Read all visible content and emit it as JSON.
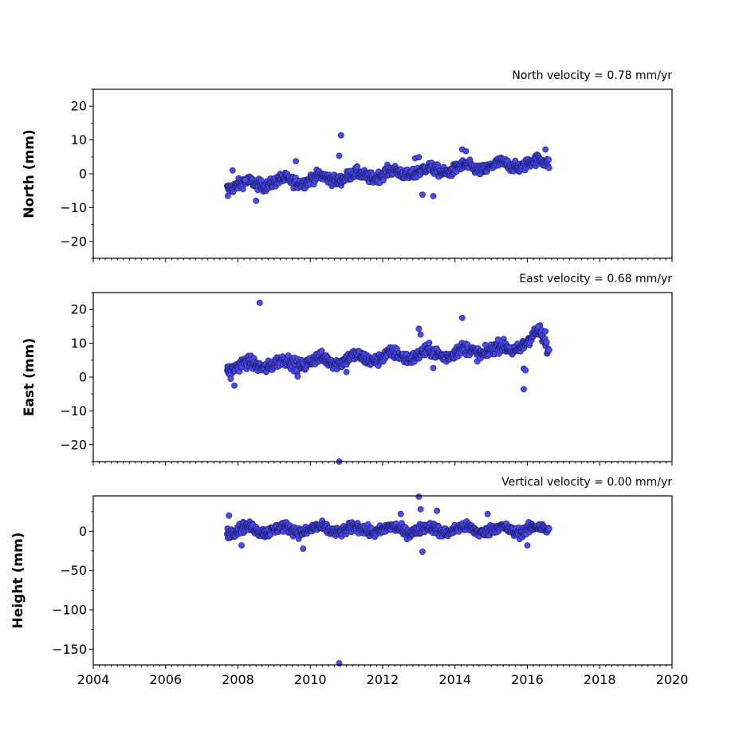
{
  "colors": {
    "marker_fill": "#4b4bf0",
    "marker_edge": "#1a1a66",
    "axes": "#000000"
  },
  "chart_data": [
    {
      "type": "scatter",
      "title": "North velocity = 0.78 mm/yr",
      "ylabel": "North (mm)",
      "xlim": [
        2004,
        2020
      ],
      "ylim": [
        -25,
        25
      ],
      "xticks": [
        "2004",
        "2006",
        "2008",
        "2010",
        "2012",
        "2014",
        "2016",
        "2018",
        "2020"
      ],
      "yticks": [
        "20",
        "10",
        "0",
        "−10",
        "−20"
      ],
      "ytick_values": [
        20,
        10,
        0,
        -10,
        -20
      ],
      "x_range": [
        2007.7,
        2016.6
      ],
      "trend": {
        "slope": 0.78,
        "start": -3.5,
        "noise": 1.6
      },
      "series": [
        {
          "x": [
            2007.72,
            2007.85,
            2008.2,
            2008.5,
            2009.6,
            2010.8,
            2010.85,
            2012.9,
            2013.0,
            2013.1,
            2013.4,
            2014.2,
            2014.3,
            2016.5
          ],
          "values": [
            -6.5,
            1.0,
            -1.8,
            -8.0,
            3.7,
            5.3,
            11.4,
            4.6,
            4.9,
            -6.2,
            -6.6,
            7.2,
            6.7,
            7.2
          ]
        }
      ]
    },
    {
      "type": "scatter",
      "title": "East velocity = 0.68 mm/yr",
      "ylabel": "East (mm)",
      "xlim": [
        2004,
        2020
      ],
      "ylim": [
        -25,
        25
      ],
      "xticks": [
        "2004",
        "2006",
        "2008",
        "2010",
        "2012",
        "2014",
        "2016",
        "2018",
        "2020"
      ],
      "yticks": [
        "20",
        "10",
        "0",
        "−10",
        "−20"
      ],
      "ytick_values": [
        20,
        10,
        0,
        -10,
        -20
      ],
      "x_range": [
        2007.7,
        2016.6
      ],
      "trend": {
        "slope": 0.68,
        "start": 3.0,
        "noise": 1.8
      },
      "series": [
        {
          "x": [
            2007.8,
            2007.9,
            2008.6,
            2009.6,
            2009.65,
            2010.8,
            2011.0,
            2013.0,
            2013.05,
            2013.4,
            2014.2,
            2015.9,
            2015.95,
            2015.9,
            2016.3,
            2016.5
          ],
          "values": [
            -0.5,
            -2.5,
            22.0,
            2.0,
            0.2,
            -25.0,
            1.5,
            14.3,
            12.6,
            2.7,
            17.5,
            2.5,
            2.0,
            -3.6,
            15.0,
            13.5
          ]
        }
      ]
    },
    {
      "type": "scatter",
      "title": "Vertical velocity = 0.00 mm/yr",
      "ylabel": "Height (mm)",
      "xlim": [
        2004,
        2020
      ],
      "ylim": [
        -170,
        45
      ],
      "xticks": [
        "2004",
        "2006",
        "2008",
        "2010",
        "2012",
        "2014",
        "2016",
        "2018",
        "2020"
      ],
      "yticks": [
        "0",
        "−50",
        "−100",
        "−150"
      ],
      "ytick_values": [
        0,
        -50,
        -100,
        -150
      ],
      "x_range": [
        2007.7,
        2016.6
      ],
      "trend": {
        "slope": 0.0,
        "start": 2.0,
        "noise": 6.5
      },
      "series": [
        {
          "x": [
            2007.75,
            2008.1,
            2009.8,
            2010.8,
            2012.5,
            2013.0,
            2013.05,
            2013.1,
            2013.5,
            2014.9,
            2016.0
          ],
          "values": [
            20.0,
            -18.0,
            -22.0,
            -168.0,
            22.0,
            44.0,
            28.0,
            -26.0,
            26.0,
            22.0,
            -18.0
          ]
        }
      ]
    }
  ]
}
